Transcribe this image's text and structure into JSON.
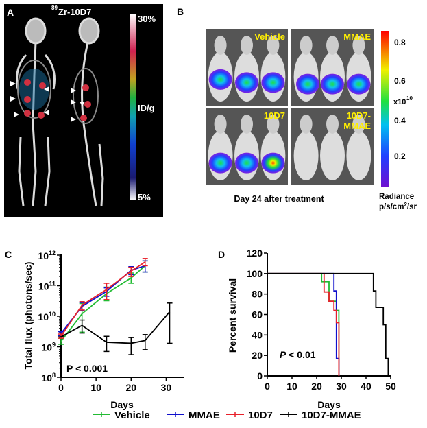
{
  "panel_a": {
    "letter": "A",
    "title_sup": "89",
    "title": "Zr-10D7",
    "scale_max": "30%",
    "scale_unit": "ID/g",
    "scale_min": "5%"
  },
  "panel_b": {
    "letter": "B",
    "groups": [
      "Vehicle",
      "MMAE",
      "10D7",
      "10D7-",
      "MMAE"
    ],
    "caption": "Day 24 after treatment",
    "colorbar_ticks": [
      "0.8",
      "0.6",
      "0.4",
      "0.2"
    ],
    "colorbar_multiplier": "x10",
    "colorbar_exp": "10",
    "colorbar_label": "Radiance",
    "colorbar_unit": "p/s/cm",
    "colorbar_unit_sup": "2",
    "colorbar_unit_tail": "/sr"
  },
  "legend": [
    {
      "name": "Vehicle",
      "color": "#22bb33"
    },
    {
      "name": "MMAE",
      "color": "#1010cc"
    },
    {
      "name": "10D7",
      "color": "#e8202a"
    },
    {
      "name": "10D7-MMAE",
      "color": "#000000"
    }
  ],
  "chart_data": [
    {
      "panel": "C",
      "type": "line",
      "xlabel": "Days",
      "ylabel": "Total flux (photons/sec)",
      "xlim": [
        0,
        35
      ],
      "ylim": [
        100000000.0,
        1000000000000.0
      ],
      "yscale": "log",
      "xticks": [
        "0",
        "10",
        "20",
        "30"
      ],
      "yticks": [
        {
          "base": "10",
          "exp": "12"
        },
        {
          "base": "10",
          "exp": "11"
        },
        {
          "base": "10",
          "exp": "10"
        },
        {
          "base": "10",
          "exp": "9"
        },
        {
          "base": "10",
          "exp": "8"
        }
      ],
      "annotation": "P < 0.001",
      "series": [
        {
          "name": "Vehicle",
          "color": "#22bb33",
          "x": [
            0,
            6,
            13,
            20,
            24
          ],
          "y": [
            1500000000.0,
            12000000000.0,
            55000000000.0,
            180000000000.0,
            450000000000.0
          ],
          "err_lo": [
            1200000000.0,
            3000000000.0,
            32000000000.0,
            120000000000.0,
            280000000000.0
          ],
          "err_hi": [
            1900000000.0,
            26000000000.0,
            90000000000.0,
            260000000000.0,
            650000000000.0
          ]
        },
        {
          "name": "MMAE",
          "color": "#1010cc",
          "x": [
            0,
            6,
            13,
            20,
            24
          ],
          "y": [
            2700000000.0,
            21000000000.0,
            65000000000.0,
            320000000000.0,
            450000000000.0
          ],
          "err_lo": [
            2300000000.0,
            15000000000.0,
            45000000000.0,
            230000000000.0,
            280000000000.0
          ],
          "err_hi": [
            3100000000.0,
            28000000000.0,
            85000000000.0,
            420000000000.0,
            650000000000.0
          ]
        },
        {
          "name": "10D7",
          "color": "#e8202a",
          "x": [
            0,
            6,
            13,
            20,
            24
          ],
          "y": [
            2200000000.0,
            23000000000.0,
            75000000000.0,
            300000000000.0,
            600000000000.0
          ],
          "err_lo": [
            1900000000.0,
            16000000000.0,
            35000000000.0,
            200000000000.0,
            450000000000.0
          ],
          "err_hi": [
            2600000000.0,
            30000000000.0,
            120000000000.0,
            400000000000.0,
            780000000000.0
          ]
        },
        {
          "name": "10D7-MMAE",
          "color": "#000000",
          "x": [
            0,
            6,
            13,
            20,
            24,
            31
          ],
          "y": [
            2100000000.0,
            5000000000.0,
            1400000000.0,
            1300000000.0,
            1600000000.0,
            14000000000.0
          ],
          "err_lo": [
            2100000000.0,
            2800000000.0,
            700000000.0,
            550000000.0,
            800000000.0,
            1300000000.0
          ],
          "err_hi": [
            2100000000.0,
            7500000000.0,
            2200000000.0,
            2000000000.0,
            2500000000.0,
            27000000000.0
          ]
        }
      ]
    },
    {
      "panel": "D",
      "type": "line",
      "step": true,
      "xlabel": "Days",
      "ylabel": "Percent survival",
      "xlim": [
        0,
        50
      ],
      "ylim": [
        0,
        120
      ],
      "xticks": [
        "0",
        "10",
        "20",
        "30",
        "40",
        "50"
      ],
      "yticks": [
        "0",
        "20",
        "40",
        "60",
        "80",
        "100",
        "120"
      ],
      "annotation_italic": "P",
      "annotation": " < 0.01",
      "series": [
        {
          "name": "Vehicle",
          "color": "#22bb33",
          "x": [
            0,
            22,
            25,
            28,
            29
          ],
          "y": [
            100,
            92,
            73,
            64,
            0
          ]
        },
        {
          "name": "MMAE",
          "color": "#1010cc",
          "x": [
            0,
            27,
            28,
            29
          ],
          "y": [
            100,
            83,
            17,
            0
          ]
        },
        {
          "name": "10D7",
          "color": "#e8202a",
          "x": [
            0,
            23,
            25,
            27,
            28,
            29
          ],
          "y": [
            100,
            82,
            73,
            64,
            52,
            0
          ]
        },
        {
          "name": "10D7-MMAE",
          "color": "#000000",
          "x": [
            0,
            43,
            44,
            47,
            48,
            49
          ],
          "y": [
            100,
            83,
            67,
            50,
            17,
            0
          ]
        }
      ]
    }
  ]
}
